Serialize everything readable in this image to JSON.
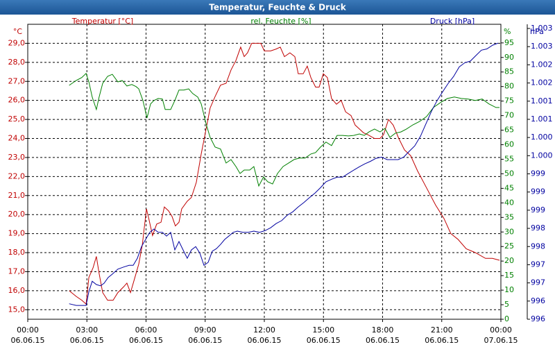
{
  "chart_data": {
    "type": "line",
    "title": "Temperatur, Feuchte & Druck",
    "ylabel": "°C",
    "y2label": "%",
    "y3label": "hPa",
    "xlim": [
      0,
      24
    ],
    "xticks": [
      {
        "value": 0,
        "label": "00:00"
      },
      {
        "value": 3,
        "label": "03:00"
      },
      {
        "value": 6,
        "label": "06:00"
      },
      {
        "value": 9,
        "label": "09:00"
      },
      {
        "value": 12,
        "label": "12:00"
      },
      {
        "value": 15,
        "label": "15:00"
      },
      {
        "value": 18,
        "label": "18:00"
      },
      {
        "value": 21,
        "label": "21:00"
      },
      {
        "value": 24,
        "label": "00:00"
      }
    ],
    "xtick_dates": [
      "06.06.15",
      "06.06.15",
      "06.06.15",
      "06.06.15",
      "06.06.15",
      "06.06.15",
      "06.06.15",
      "06.06.15",
      "07.06.15"
    ],
    "ylim": [
      14.5,
      30
    ],
    "yticks": [
      {
        "value": 15,
        "label": "15,0"
      },
      {
        "value": 16,
        "label": "16,0"
      },
      {
        "value": 17,
        "label": "17,0"
      },
      {
        "value": 18,
        "label": "18,0"
      },
      {
        "value": 19,
        "label": "19,0"
      },
      {
        "value": 20,
        "label": "20,0"
      },
      {
        "value": 21,
        "label": "21,0"
      },
      {
        "value": 22,
        "label": "22,0"
      },
      {
        "value": 23,
        "label": "23,0"
      },
      {
        "value": 24,
        "label": "24,0"
      },
      {
        "value": 25,
        "label": "25,0"
      },
      {
        "value": 26,
        "label": "26,0"
      },
      {
        "value": 27,
        "label": "27,0"
      },
      {
        "value": 28,
        "label": "28,0"
      },
      {
        "value": 29,
        "label": "29,0"
      }
    ],
    "y2lim": [
      0,
      101.4
    ],
    "y2ticks": [
      0,
      5,
      10,
      15,
      20,
      25,
      30,
      35,
      40,
      45,
      50,
      55,
      60,
      65,
      70,
      75,
      80,
      85,
      90,
      95
    ],
    "y3lim": [
      996,
      1003.06
    ],
    "y3ticks": [
      996,
      {
        "value": 996.435,
        "label": "996"
      },
      {
        "value": 996.87,
        "label": "997"
      },
      {
        "value": 997.305,
        "label": "997"
      },
      {
        "value": 997.74,
        "label": "998"
      },
      {
        "value": 998.175,
        "label": "998"
      },
      {
        "value": 998.61,
        "label": "999"
      },
      {
        "value": 999.045,
        "label": "999"
      },
      {
        "value": 999.48,
        "label": "999"
      },
      {
        "value": 999.915,
        "label": "1.000"
      },
      {
        "value": 1000.35,
        "label": "1.000"
      },
      {
        "value": 1000.785,
        "label": "1.001"
      },
      {
        "value": 1001.22,
        "label": "1.001"
      },
      {
        "value": 1001.655,
        "label": "1.002"
      },
      {
        "value": 1002.09,
        "label": "1.002"
      },
      {
        "value": 1002.525,
        "label": "1.003"
      },
      {
        "value": 1002.96,
        "label": "1.003"
      }
    ],
    "grid": true,
    "series": [
      {
        "name": "Temperatur [°C]",
        "color": "#c00000",
        "axis": "y",
        "x": [
          2.1,
          2.46,
          2.74,
          2.96,
          3.1,
          3.31,
          3.48,
          3.62,
          3.8,
          4.05,
          4.33,
          4.57,
          4.86,
          5.03,
          5.21,
          5.38,
          5.63,
          5.81,
          6.02,
          6.16,
          6.33,
          6.54,
          6.76,
          6.93,
          7.14,
          7.32,
          7.49,
          7.67,
          7.81,
          8.09,
          8.3,
          8.55,
          8.8,
          9.01,
          9.25,
          9.5,
          9.78,
          10.06,
          10.31,
          10.56,
          10.8,
          10.98,
          11.15,
          11.36,
          11.61,
          11.82,
          12.0,
          12.32,
          12.6,
          12.81,
          13.02,
          13.3,
          13.55,
          13.72,
          13.97,
          14.18,
          14.36,
          14.6,
          14.78,
          14.99,
          15.2,
          15.41,
          15.66,
          15.9,
          16.12,
          16.4,
          16.61,
          16.82,
          17.03,
          17.24,
          17.59,
          17.87,
          18.05,
          18.3,
          18.54,
          18.82,
          19.11,
          19.42,
          19.77,
          20.23,
          20.69,
          21.11,
          21.46,
          21.82,
          22.24,
          22.7,
          23.22,
          23.57,
          23.93
        ],
        "values": [
          16.0,
          15.7,
          15.5,
          15.3,
          16.7,
          17.2,
          17.8,
          16.9,
          15.9,
          15.5,
          15.5,
          15.9,
          16.2,
          16.4,
          15.9,
          16.5,
          17.4,
          18.4,
          20.3,
          19.7,
          18.9,
          19.5,
          19.6,
          20.4,
          20.2,
          19.9,
          19.4,
          19.6,
          20.3,
          20.7,
          20.9,
          21.7,
          23.2,
          24.3,
          25.6,
          26.2,
          26.8,
          26.9,
          27.6,
          28.1,
          28.8,
          28.3,
          28.5,
          29.0,
          29.0,
          29.0,
          28.6,
          28.6,
          28.7,
          28.8,
          28.3,
          28.5,
          28.3,
          27.4,
          27.4,
          27.8,
          27.2,
          26.7,
          26.7,
          27.4,
          27.2,
          26.1,
          25.8,
          26.0,
          25.4,
          25.2,
          24.7,
          24.5,
          24.3,
          24.2,
          24.0,
          24.0,
          24.2,
          25.0,
          24.7,
          24.0,
          23.4,
          23.1,
          22.3,
          21.4,
          20.5,
          19.8,
          19.0,
          18.7,
          18.2,
          18.0,
          17.7,
          17.7,
          17.6
        ]
      },
      {
        "name": "rel. Feuchte [%]",
        "color": "#008000",
        "axis": "y2",
        "x": [
          2.1,
          2.46,
          2.74,
          2.96,
          3.1,
          3.27,
          3.48,
          3.62,
          3.8,
          4.05,
          4.29,
          4.57,
          4.79,
          5.03,
          5.28,
          5.49,
          5.63,
          5.84,
          6.05,
          6.23,
          6.4,
          6.62,
          6.83,
          6.97,
          7.25,
          7.46,
          7.67,
          7.92,
          8.16,
          8.37,
          8.62,
          8.8,
          9.04,
          9.25,
          9.5,
          9.78,
          10.06,
          10.31,
          10.56,
          10.77,
          10.98,
          11.26,
          11.47,
          11.72,
          11.96,
          12.17,
          12.42,
          12.67,
          12.95,
          13.23,
          13.51,
          13.79,
          14.07,
          14.36,
          14.6,
          14.85,
          15.13,
          15.41,
          15.69,
          15.97,
          16.26,
          16.54,
          16.82,
          17.07,
          17.31,
          17.59,
          17.87,
          18.12,
          18.37,
          18.65,
          18.93,
          19.21,
          19.53,
          19.88,
          20.23,
          20.58,
          20.94,
          21.29,
          21.64,
          21.99,
          22.34,
          22.7,
          23.05,
          23.4,
          23.75,
          23.93
        ],
        "values": [
          80.4,
          82.1,
          83.1,
          84.5,
          81.6,
          76.4,
          72.1,
          76.4,
          81.1,
          83.5,
          84.2,
          81.6,
          82.1,
          80.2,
          80.7,
          80.0,
          79.2,
          75.2,
          69.2,
          74.0,
          75.2,
          75.9,
          75.7,
          72.1,
          72.1,
          75.2,
          78.8,
          78.8,
          79.2,
          77.6,
          76.4,
          74.0,
          67.3,
          62.5,
          59.2,
          58.5,
          53.7,
          54.9,
          52.5,
          50.1,
          51.3,
          51.3,
          52.5,
          45.8,
          48.9,
          47.3,
          46.5,
          50.1,
          52.5,
          53.7,
          54.9,
          55.4,
          55.4,
          56.8,
          57.3,
          59.2,
          60.9,
          59.7,
          63.2,
          63.2,
          63.0,
          63.2,
          63.7,
          63.2,
          64.4,
          65.4,
          64.4,
          65.6,
          62.5,
          64.0,
          64.4,
          65.4,
          66.8,
          68.0,
          69.7,
          72.8,
          74.5,
          75.9,
          76.4,
          75.9,
          75.7,
          75.2,
          75.7,
          74.0,
          72.8,
          72.8
        ]
      },
      {
        "name": "Druck [hPa]",
        "color": "#0000a0",
        "axis": "y3",
        "x": [
          2.1,
          2.46,
          2.74,
          2.96,
          3.1,
          3.27,
          3.48,
          3.69,
          3.87,
          4.08,
          4.29,
          4.57,
          4.86,
          5.14,
          5.35,
          5.56,
          5.77,
          5.98,
          6.19,
          6.4,
          6.62,
          6.83,
          7.04,
          7.25,
          7.46,
          7.67,
          7.88,
          8.09,
          8.3,
          8.52,
          8.73,
          8.94,
          9.15,
          9.36,
          9.57,
          9.78,
          9.99,
          10.2,
          10.42,
          10.63,
          10.91,
          11.19,
          11.47,
          11.75,
          12.03,
          12.32,
          12.6,
          12.88,
          13.16,
          13.44,
          13.72,
          14.0,
          14.29,
          14.57,
          14.85,
          15.13,
          15.41,
          15.69,
          15.97,
          16.26,
          16.54,
          16.82,
          17.1,
          17.38,
          17.66,
          17.95,
          18.23,
          18.51,
          18.79,
          19.07,
          19.35,
          19.63,
          19.92,
          20.2,
          20.48,
          20.76,
          21.04,
          21.32,
          21.6,
          21.89,
          22.17,
          22.45,
          22.73,
          23.01,
          23.29,
          23.58,
          23.86
        ],
        "values": [
          996.37,
          996.33,
          996.33,
          996.33,
          996.66,
          996.91,
          996.83,
          996.8,
          996.86,
          997.0,
          997.08,
          997.2,
          997.25,
          997.29,
          997.29,
          997.46,
          997.74,
          997.91,
          998.08,
          998.16,
          998.08,
          998.08,
          997.99,
          998.08,
          997.66,
          997.86,
          997.66,
          997.46,
          997.66,
          997.74,
          997.58,
          997.29,
          997.36,
          997.63,
          997.69,
          997.79,
          997.91,
          997.99,
          998.08,
          998.11,
          998.08,
          998.08,
          998.11,
          998.08,
          998.12,
          998.19,
          998.29,
          998.36,
          998.49,
          998.57,
          998.69,
          998.79,
          998.91,
          999.02,
          999.15,
          999.29,
          999.35,
          999.4,
          999.4,
          999.49,
          999.57,
          999.65,
          999.72,
          999.78,
          999.85,
          999.88,
          999.82,
          999.82,
          999.82,
          999.88,
          1000.02,
          1000.15,
          1000.38,
          1000.68,
          1000.98,
          1001.23,
          1001.44,
          1001.64,
          1001.81,
          1002.04,
          1002.14,
          1002.18,
          1002.31,
          1002.44,
          1002.47,
          1002.56,
          1002.61
        ]
      }
    ]
  }
}
